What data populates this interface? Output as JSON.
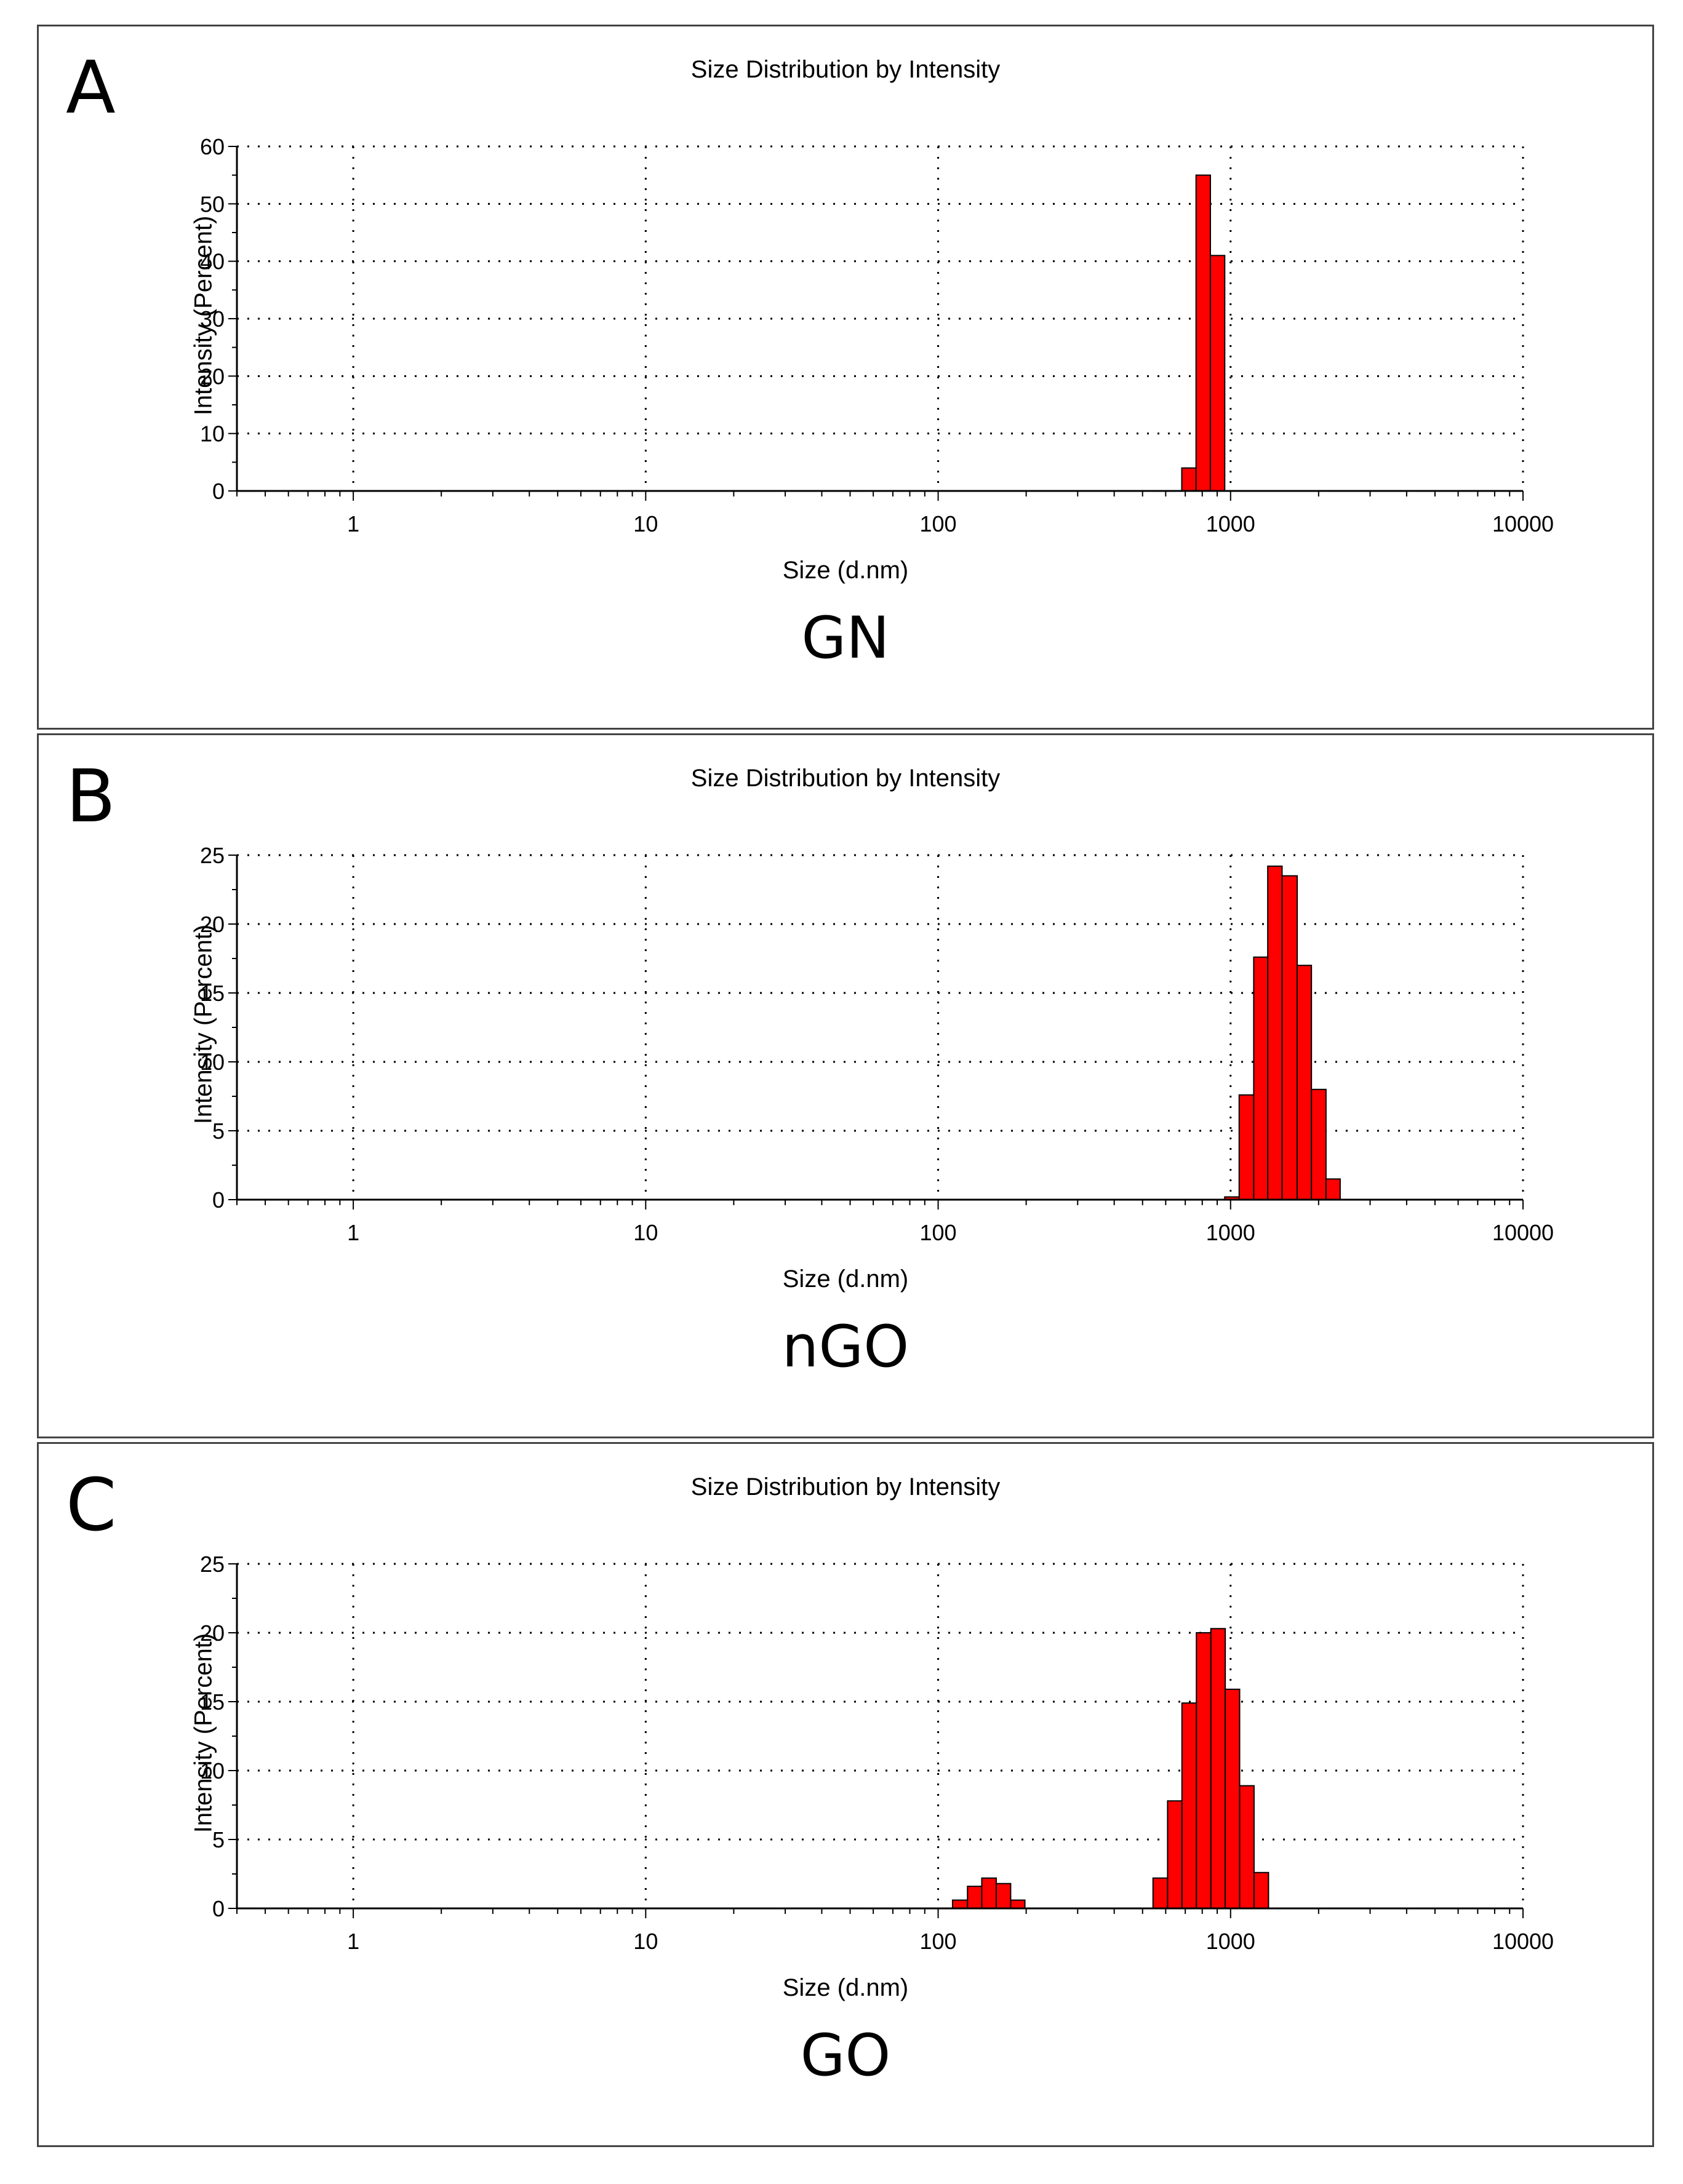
{
  "chart_data": [
    {
      "type": "bar",
      "panel_letter": "A",
      "title": "Size Distribution by Intensity",
      "xlabel": "Size (d.nm)",
      "ylabel": "Intensity (Percent)",
      "sample_label": "GN",
      "x_scale": "log",
      "xlim": [
        0.4,
        10000
      ],
      "ylim": [
        0,
        60
      ],
      "yticks": [
        0,
        10,
        20,
        30,
        40,
        50,
        60
      ],
      "xticks": [
        1,
        10,
        100,
        1000,
        10000
      ],
      "xtick_labels": [
        "1",
        "10",
        "100",
        "1000",
        "10000"
      ],
      "grid": true,
      "bar_color": "#ff0000",
      "bins": [
        [
          681,
          762
        ],
        [
          762,
          853
        ],
        [
          853,
          955
        ]
      ],
      "values": [
        4,
        55,
        41
      ]
    },
    {
      "type": "bar",
      "panel_letter": "B",
      "title": "Size Distribution by Intensity",
      "xlabel": "Size (d.nm)",
      "ylabel": "Intensity (Percent)",
      "sample_label": "nGO",
      "x_scale": "log",
      "xlim": [
        0.4,
        10000
      ],
      "ylim": [
        0,
        25
      ],
      "yticks": [
        0,
        5,
        10,
        15,
        20,
        25
      ],
      "xticks": [
        1,
        10,
        100,
        1000,
        10000
      ],
      "xtick_labels": [
        "1",
        "10",
        "100",
        "1000",
        "10000"
      ],
      "grid": true,
      "bar_color": "#ff0000",
      "bins": [
        [
          955,
          1070
        ],
        [
          1070,
          1200
        ],
        [
          1200,
          1340
        ],
        [
          1340,
          1500
        ],
        [
          1500,
          1690
        ],
        [
          1690,
          1890
        ],
        [
          1890,
          2120
        ],
        [
          2120,
          2370
        ],
        [
          2370,
          2660
        ]
      ],
      "values": [
        0.2,
        7.6,
        17.6,
        24.2,
        23.5,
        17,
        8,
        1.5,
        0
      ]
    },
    {
      "type": "bar",
      "panel_letter": "C",
      "title": "Size Distribution by Intensity",
      "xlabel": "Size (d.nm)",
      "ylabel": "Intensity (Percent)",
      "sample_label": "GO",
      "x_scale": "log",
      "xlim": [
        0.4,
        10000
      ],
      "ylim": [
        0,
        25
      ],
      "yticks": [
        0,
        5,
        10,
        15,
        20,
        25
      ],
      "xticks": [
        1,
        10,
        100,
        1000,
        10000
      ],
      "xtick_labels": [
        "1",
        "10",
        "100",
        "1000",
        "10000"
      ],
      "grid": true,
      "bar_color": "#ff0000",
      "bins": [
        [
          112,
          126
        ],
        [
          126,
          141
        ],
        [
          141,
          158
        ],
        [
          158,
          177
        ],
        [
          177,
          198
        ],
        [
          198,
          222
        ],
        [
          543,
          609
        ],
        [
          609,
          682
        ],
        [
          682,
          764
        ],
        [
          764,
          856
        ],
        [
          856,
          959
        ],
        [
          959,
          1074
        ],
        [
          1074,
          1203
        ],
        [
          1203,
          1348
        ],
        [
          1348,
          1510
        ],
        [
          1510,
          1691
        ]
      ],
      "values": [
        0.6,
        1.6,
        2.2,
        1.8,
        0.6,
        0,
        2.2,
        7.8,
        14.9,
        20,
        20.3,
        15.9,
        8.9,
        2.6,
        0,
        0
      ]
    }
  ]
}
